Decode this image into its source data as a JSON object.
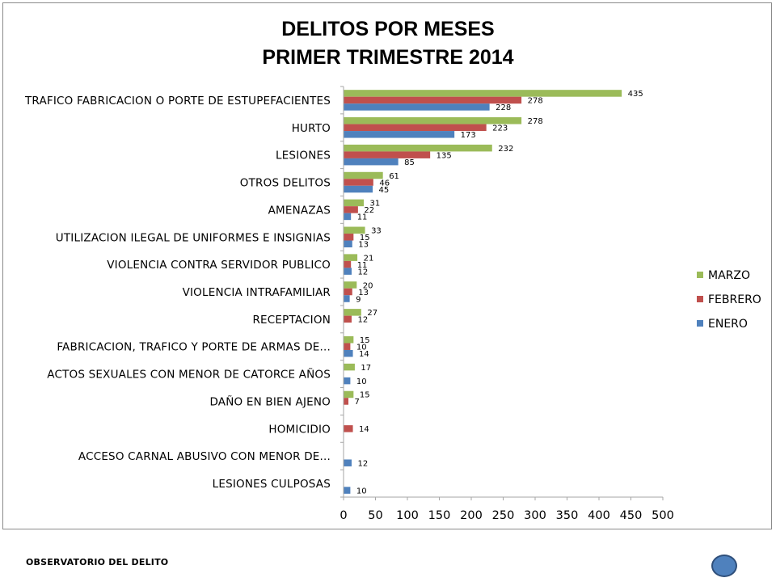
{
  "footer": {
    "label": "OBSERVATORIO DEL DELITO"
  },
  "colors": {
    "marzo": "#9bbb59",
    "febrero": "#c0504d",
    "enero": "#4f81bd",
    "axis": "#a6a6a6"
  },
  "chart_data": {
    "type": "bar",
    "orientation": "horizontal",
    "title_lines": [
      "DELITOS POR MESES",
      "PRIMER TRIMESTRE 2014"
    ],
    "categories": [
      "TRAFICO FABRICACION O PORTE DE ESTUPEFACIENTES",
      "HURTO",
      "LESIONES",
      "OTROS DELITOS",
      "AMENAZAS",
      "UTILIZACION ILEGAL DE UNIFORMES E INSIGNIAS",
      "VIOLENCIA CONTRA SERVIDOR PUBLICO",
      "VIOLENCIA INTRAFAMILIAR",
      "RECEPTACION",
      "FABRICACION, TRAFICO Y PORTE DE ARMAS DE...",
      "ACTOS SEXUALES CON MENOR DE CATORCE AÑOS",
      "DAÑO EN BIEN AJENO",
      "HOMICIDIO",
      "ACCESO CARNAL ABUSIVO CON MENOR DE...",
      "LESIONES CULPOSAS"
    ],
    "series": [
      {
        "name": "MARZO",
        "color": "#9bbb59",
        "values": [
          435,
          278,
          232,
          61,
          31,
          33,
          21,
          20,
          27,
          15,
          17,
          15,
          null,
          null,
          null
        ]
      },
      {
        "name": "FEBRERO",
        "color": "#c0504d",
        "values": [
          278,
          223,
          135,
          46,
          22,
          15,
          11,
          13,
          12,
          10,
          null,
          7,
          14,
          null,
          null
        ]
      },
      {
        "name": "ENERO",
        "color": "#4f81bd",
        "values": [
          228,
          173,
          85,
          45,
          11,
          13,
          12,
          9,
          null,
          14,
          10,
          null,
          null,
          12,
          10
        ]
      }
    ],
    "legend_order": [
      "MARZO",
      "FEBRERO",
      "ENERO"
    ],
    "legend_position": "right",
    "xlim": [
      0,
      500
    ],
    "xticks": [
      0,
      50,
      100,
      150,
      200,
      250,
      300,
      350,
      400,
      450,
      500
    ],
    "grid": false
  }
}
